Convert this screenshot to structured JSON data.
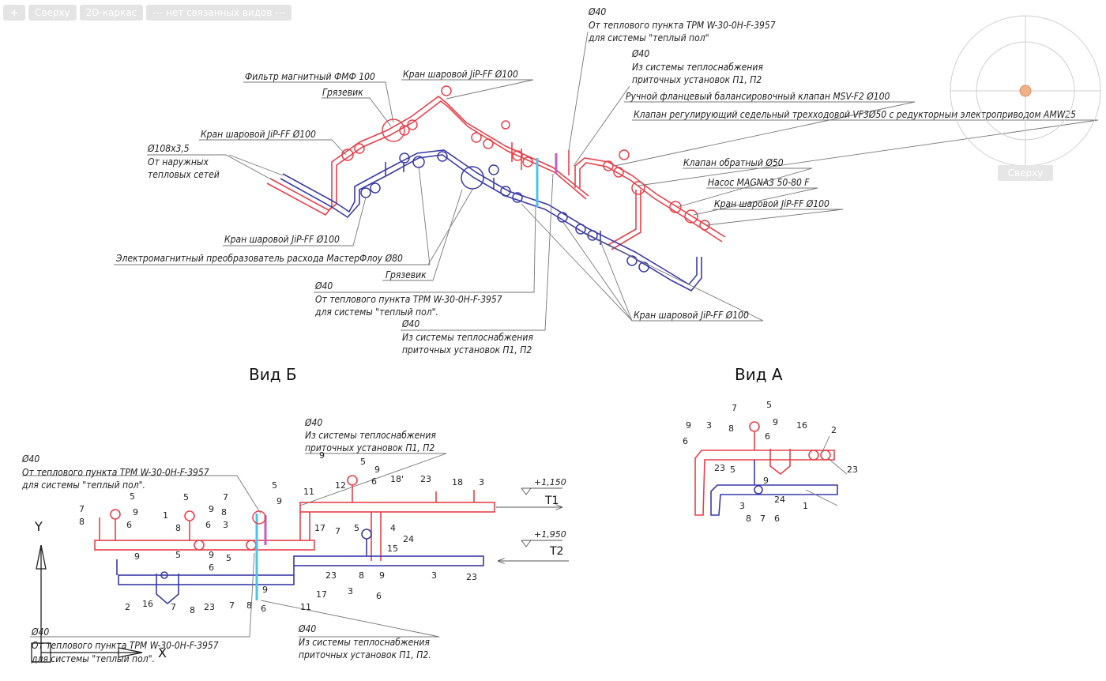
{
  "viewport_controls": {
    "plus": "+",
    "view": "Сверху",
    "style": "2D-каркас",
    "linked": "--- нет связанных видов ---"
  },
  "viewcube": {
    "label": "Сверху"
  },
  "iso_labels": {
    "pipe_size": "Ø108x3,5",
    "outer_1": "От наружных",
    "outer_2": "тепловых сетей",
    "valve": "Кран шаровой  JiP-FF Ø100",
    "filter": "Фильтр магнитный  ФМФ 100",
    "mud": "Грязевик",
    "em_conv": "Электромагнитный преобразователь  расхода МастерФлоу Ø80",
    "d40": "Ø40",
    "from_trm_1": "От теплового пункта ТРМ W-30-0Н-F-3957",
    "from_trm_2": "для системы \"теплый пол\"",
    "from_trm_2b": "для системы \"теплый пол\".",
    "from_sys_1": "Из системы теплоснабжения",
    "from_sys_2": "приточных установок П1, П2",
    "manual_valve": "Ручной фланцевый  балансировочный  клапан  MSV-F2 Ø100",
    "reg_valve": "Клапан регулирующий седельный трехходовой VF3Ø50 с редукторным электроприводом AMW25",
    "check_valve": "Клапан обратный Ø50",
    "pump": "Насос MAGNA3 50-80 F"
  },
  "view_b": {
    "title": "Вид Б",
    "from_sys_2_dot": "приточных установок П1, П2.",
    "t1": "Т1",
    "t2": "Т2",
    "lvl1": "+1,150",
    "lvl2": "+1,950",
    "nums_top": [
      "7",
      "8",
      "5",
      "9",
      "6",
      "1",
      "5",
      "9",
      "8",
      "6",
      "3",
      "7",
      "8",
      "9",
      "5",
      "9",
      "11",
      "12",
      "5",
      "9",
      "6",
      "18'",
      "23",
      "18",
      "3",
      "17",
      "7",
      "5",
      "4",
      "24",
      "15"
    ],
    "nums_bot": [
      "9",
      "5",
      "9",
      "6",
      "5",
      "2",
      "16",
      "7",
      "8",
      "23",
      "7",
      "8",
      "6",
      "9",
      "17",
      "11",
      "23",
      "3",
      "8",
      "9",
      "6",
      "3",
      "23"
    ]
  },
  "view_a": {
    "title": "Вид А",
    "nums": [
      "9",
      "6",
      "3",
      "8",
      "7",
      "5",
      "9",
      "6",
      "16",
      "2",
      "23",
      "5",
      "9",
      "23",
      "3",
      "8",
      "7",
      "6",
      "24",
      "1"
    ]
  },
  "ucs": {
    "y": "Y",
    "x": "X"
  },
  "colors": {
    "supply": "#e8404a",
    "return": "#3a3aa8",
    "cyan": "#50c0e8",
    "magenta": "#c060c0",
    "leader": "#777777",
    "orange": "#f0b088"
  }
}
